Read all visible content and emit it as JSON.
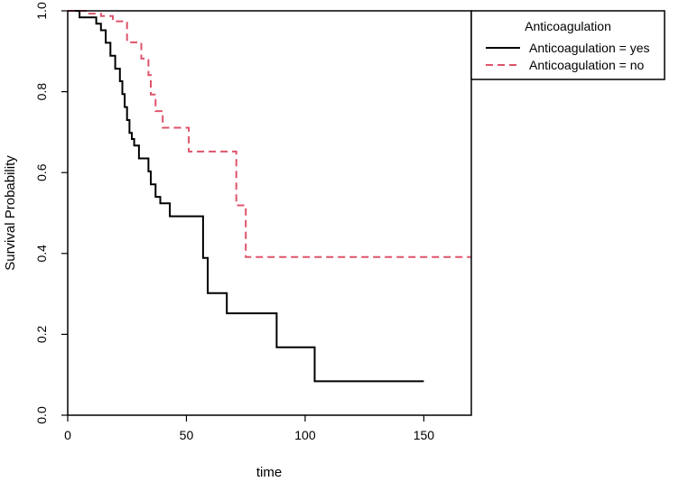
{
  "chart_data": {
    "type": "line",
    "subtype": "kaplan-meier step curve",
    "title": "",
    "xlabel": "time",
    "ylabel": "Survival Probability",
    "xlim": [
      0,
      170
    ],
    "ylim": [
      0,
      1
    ],
    "xticks": [
      0,
      50,
      100,
      150
    ],
    "yticks": [
      0.0,
      0.2,
      0.4,
      0.6,
      0.8,
      1.0
    ],
    "xtick_labels": [
      "0",
      "50",
      "100",
      "150"
    ],
    "ytick_labels": [
      "0.0",
      "0.2",
      "0.4",
      "0.6",
      "0.8",
      "1.0"
    ],
    "grid": false,
    "legend": {
      "title": "Anticoagulation",
      "placement": "top-right, outside plot",
      "entries": [
        "Anticoagulation = yes",
        "Anticoagulation = no"
      ]
    },
    "series": [
      {
        "name": "Anticoagulation = yes",
        "color": "#000000",
        "dash": "solid",
        "x": [
          0,
          5,
          12,
          14,
          16,
          18,
          20,
          22,
          23,
          24,
          25,
          26,
          27,
          28,
          30,
          34,
          35,
          37,
          39,
          43,
          57,
          59,
          61,
          67,
          88,
          104,
          150
        ],
        "y": [
          1.0,
          0.984,
          0.968,
          0.952,
          0.921,
          0.889,
          0.857,
          0.826,
          0.794,
          0.762,
          0.73,
          0.698,
          0.683,
          0.667,
          0.635,
          0.603,
          0.571,
          0.54,
          0.524,
          0.492,
          0.389,
          0.302,
          0.302,
          0.252,
          0.168,
          0.084,
          0.084
        ]
      },
      {
        "name": "Anticoagulation = no",
        "color": "#df536b",
        "dash": "dashed",
        "x": [
          0,
          8,
          14,
          19,
          25,
          31,
          34,
          35,
          37,
          40,
          51,
          71,
          73,
          75,
          170
        ],
        "y": [
          1.0,
          0.993,
          0.987,
          0.974,
          0.922,
          0.882,
          0.841,
          0.793,
          0.752,
          0.711,
          0.652,
          0.519,
          0.519,
          0.391,
          0.391
        ]
      }
    ]
  }
}
